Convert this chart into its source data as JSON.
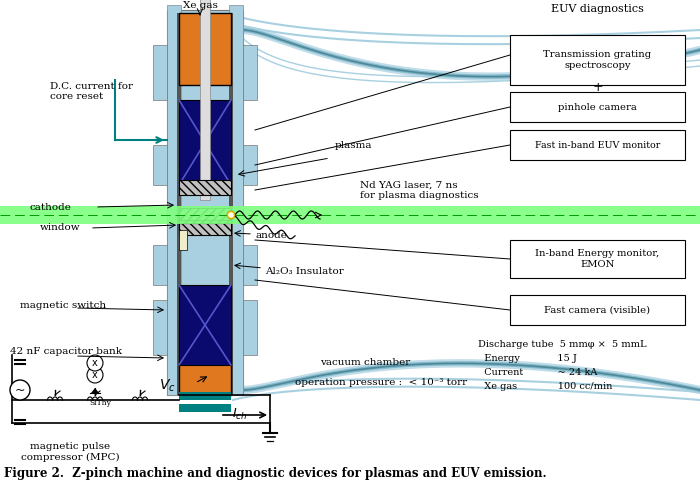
{
  "title": "Figure 2.  Z-pinch machine and diagnostic devices for plasmas and EUV emission.",
  "fig_width": 7.0,
  "fig_height": 4.86,
  "colors": {
    "orange": "#E07820",
    "dark_blue": "#0a0a6e",
    "light_blue": "#a8d0e0",
    "cyan_teal": "#008080",
    "green_beam": "#90ee90",
    "white": "#ffffff",
    "black": "#000000",
    "gray": "#888888",
    "hatch_gray": "#cccccc",
    "yellow_dot": "#ffcc00"
  },
  "labels": {
    "euv_diagnostics": "EUV diagnostics",
    "transmission_grating": "Transmission grating\nspectroscopy",
    "pinhole_camera": "pinhole camera",
    "fast_euv": "Fast in-band EUV monitor",
    "plasma": "plasma",
    "nd_yag": "Nd YAG laser, 7 ns\nfor plasma diagnostics",
    "window": "window",
    "anode": "anode",
    "al2o3": "Al₂O₃ Insulator",
    "inband_energy": "In-band Energy monitor,\nEMON",
    "fast_camera": "Fast camera (visible)",
    "vacuum_chamber": "vacuum chamber",
    "op_pressure": "operation pressure :  < 10⁻³ torr",
    "xe_gas": "Xe gas",
    "dc_current": "D.C. current for\ncore reset",
    "cathode": "cathode",
    "magnetic_switch": "magnetic switch",
    "cap_bank": "42 nF capacitor bank",
    "mpc": "magnetic pulse\ncompressor (MPC)"
  }
}
